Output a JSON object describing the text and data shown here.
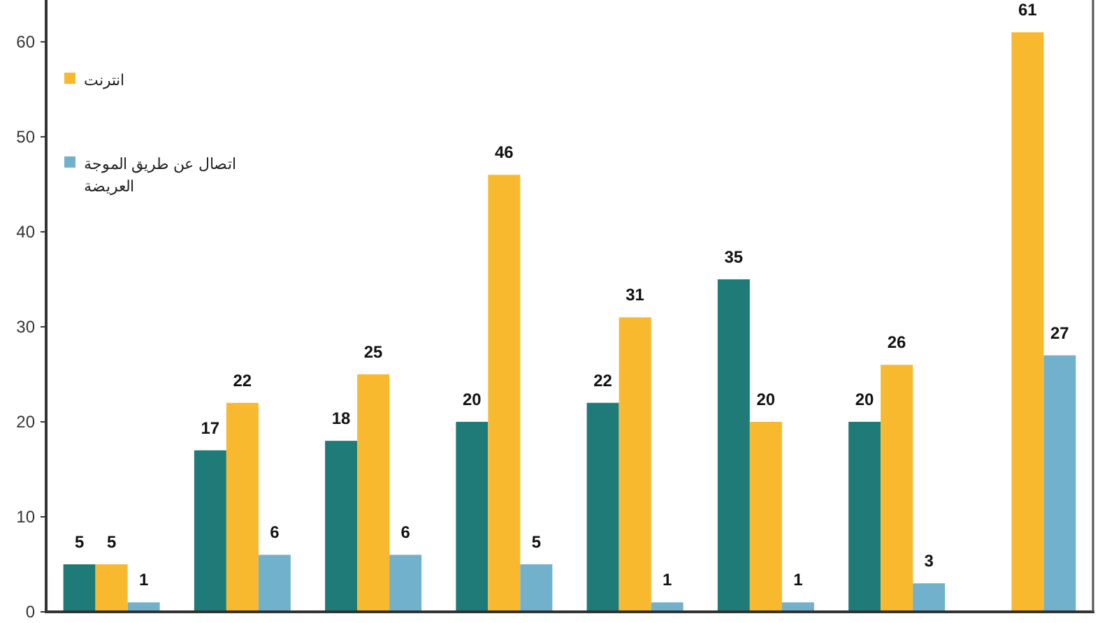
{
  "chart_data": {
    "type": "bar",
    "categories": [
      null,
      null,
      null,
      null,
      null,
      null,
      null,
      null
    ],
    "series": [
      {
        "color": "#1e7b78",
        "values": [
          5,
          17,
          18,
          20,
          22,
          35,
          20,
          null
        ]
      },
      {
        "name": "انترنت",
        "color": "#f9b92f",
        "values": [
          5,
          22,
          25,
          46,
          31,
          20,
          26,
          61
        ]
      },
      {
        "name": "اتصال عن طريق الموجة العريضة",
        "color": "#72b1cc",
        "values": [
          1,
          6,
          6,
          5,
          1,
          1,
          3,
          27
        ]
      }
    ],
    "ylim": [
      0,
      64.4
    ],
    "yticks": [
      0,
      10,
      20,
      30,
      40,
      50,
      60
    ],
    "data_labels": true,
    "legend": "top left",
    "grid": false
  }
}
